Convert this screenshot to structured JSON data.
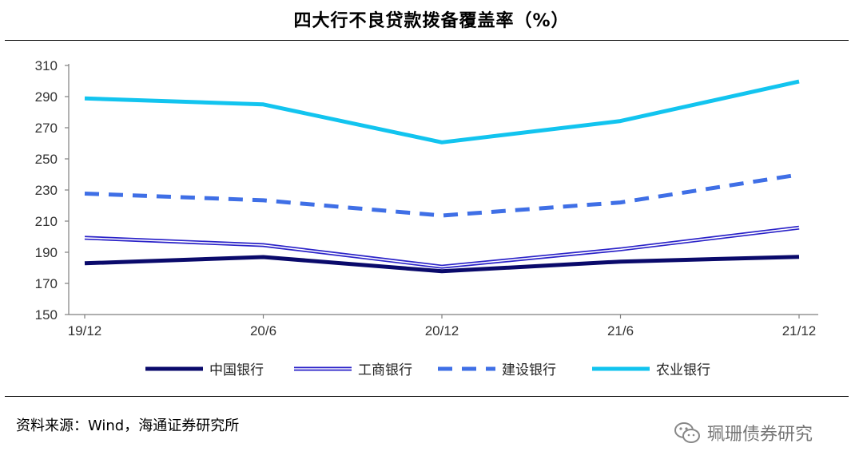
{
  "title": "四大行不良贷款拨备覆盖率（%）",
  "source": "资料来源：Wind，海通证券研究所",
  "watermark": "珮珊债券研究",
  "watermark_icon": "wechat-icon",
  "chart_data": {
    "type": "line",
    "title": "四大行不良贷款拨备覆盖率（%）",
    "categories": [
      "19/12",
      "20/6",
      "20/12",
      "21/6",
      "21/12"
    ],
    "ylim": [
      150,
      310
    ],
    "yticks": [
      150,
      170,
      190,
      210,
      230,
      250,
      270,
      290,
      310
    ],
    "grid": false,
    "legend_position": "bottom",
    "series": [
      {
        "name": "中国银行",
        "values": [
          182.9,
          186.9,
          177.8,
          184.0,
          187.1
        ],
        "color": "#0a0a6b",
        "style": "solid-thick"
      },
      {
        "name": "工商银行",
        "values": [
          199.3,
          194.6,
          180.7,
          191.9,
          205.8
        ],
        "color": "#2a22c8",
        "style": "double"
      },
      {
        "name": "建设银行",
        "values": [
          227.7,
          223.4,
          213.6,
          222.0,
          239.9
        ],
        "color": "#3f6fe6",
        "style": "dashed"
      },
      {
        "name": "农业银行",
        "values": [
          288.8,
          285.0,
          260.6,
          274.3,
          299.7
        ],
        "color": "#12c4ef",
        "style": "solid-thick"
      }
    ]
  }
}
